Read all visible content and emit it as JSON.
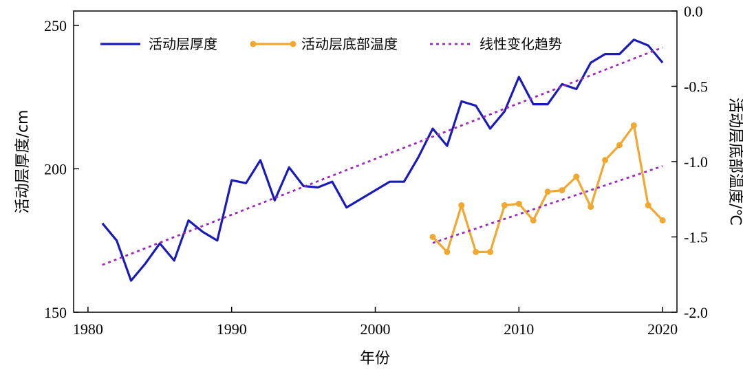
{
  "chart_data": {
    "type": "line",
    "xlabel": "年份",
    "ylabel_left": "活动层厚度/cm",
    "ylabel_right": "活动层底部温度/℃",
    "xlim": [
      1979,
      2021
    ],
    "ylim_left": [
      150,
      255
    ],
    "ylim_right": [
      -2.0,
      0.0
    ],
    "x_ticks": [
      1980,
      1990,
      2000,
      2010,
      2020
    ],
    "y_ticks_left": [
      150,
      200,
      250
    ],
    "y_ticks_right": [
      "-2.0",
      "-1.5",
      "-1.0",
      "-0.5",
      "0.0"
    ],
    "legend_position": "top-left",
    "grid": false,
    "series": [
      {
        "name": "活动层厚度",
        "axis": "left",
        "color": "#1a1ab8",
        "style": "solid",
        "points": [
          [
            1981,
            181
          ],
          [
            1982,
            175
          ],
          [
            1983,
            161
          ],
          [
            1984,
            167
          ],
          [
            1985,
            174
          ],
          [
            1986,
            168
          ],
          [
            1987,
            182
          ],
          [
            1988,
            178
          ],
          [
            1989,
            175
          ],
          [
            1990,
            196
          ],
          [
            1991,
            195
          ],
          [
            1992,
            203
          ],
          [
            1993,
            189
          ],
          [
            1994,
            200.5
          ],
          [
            1995,
            194
          ],
          [
            1996,
            193.5
          ],
          [
            1997,
            195.5
          ],
          [
            1998,
            186.5
          ],
          [
            1999,
            189.5
          ],
          [
            2000,
            192.5
          ],
          [
            2001,
            195.5
          ],
          [
            2002,
            195.5
          ],
          [
            2003,
            204
          ],
          [
            2004,
            214
          ],
          [
            2005,
            208
          ],
          [
            2006,
            223.5
          ],
          [
            2007,
            222
          ],
          [
            2008,
            214
          ],
          [
            2009,
            220
          ],
          [
            2010,
            232
          ],
          [
            2011,
            222.5
          ],
          [
            2012,
            222.5
          ],
          [
            2013,
            229.5
          ],
          [
            2014,
            227.8
          ],
          [
            2015,
            237
          ],
          [
            2016,
            240
          ],
          [
            2017,
            240
          ],
          [
            2018,
            245
          ],
          [
            2019,
            243
          ],
          [
            2020,
            237
          ]
        ]
      },
      {
        "name": "活动层底部温度",
        "axis": "right",
        "color": "#f0a830",
        "style": "solid-markers",
        "points": [
          [
            2004,
            -1.5
          ],
          [
            2005,
            -1.6
          ],
          [
            2006,
            -1.29
          ],
          [
            2007,
            -1.6
          ],
          [
            2008,
            -1.6
          ],
          [
            2009,
            -1.29
          ],
          [
            2010,
            -1.28
          ],
          [
            2011,
            -1.39
          ],
          [
            2012,
            -1.2
          ],
          [
            2013,
            -1.19
          ],
          [
            2014,
            -1.1
          ],
          [
            2015,
            -1.3
          ],
          [
            2016,
            -0.99
          ],
          [
            2017,
            -0.89
          ],
          [
            2018,
            -0.76
          ],
          [
            2019,
            -1.29
          ],
          [
            2020,
            -1.39
          ]
        ]
      },
      {
        "name": "线性变化趋势",
        "axis": "left",
        "color": "#9a2ab8",
        "style": "dotted",
        "points": [
          [
            1981,
            166.5
          ],
          [
            2020,
            242.3
          ]
        ]
      },
      {
        "legend": false,
        "axis": "right",
        "color": "#9a2ab8",
        "style": "dotted",
        "points": [
          [
            2004,
            -1.54
          ],
          [
            2020,
            -1.03
          ]
        ]
      }
    ]
  }
}
